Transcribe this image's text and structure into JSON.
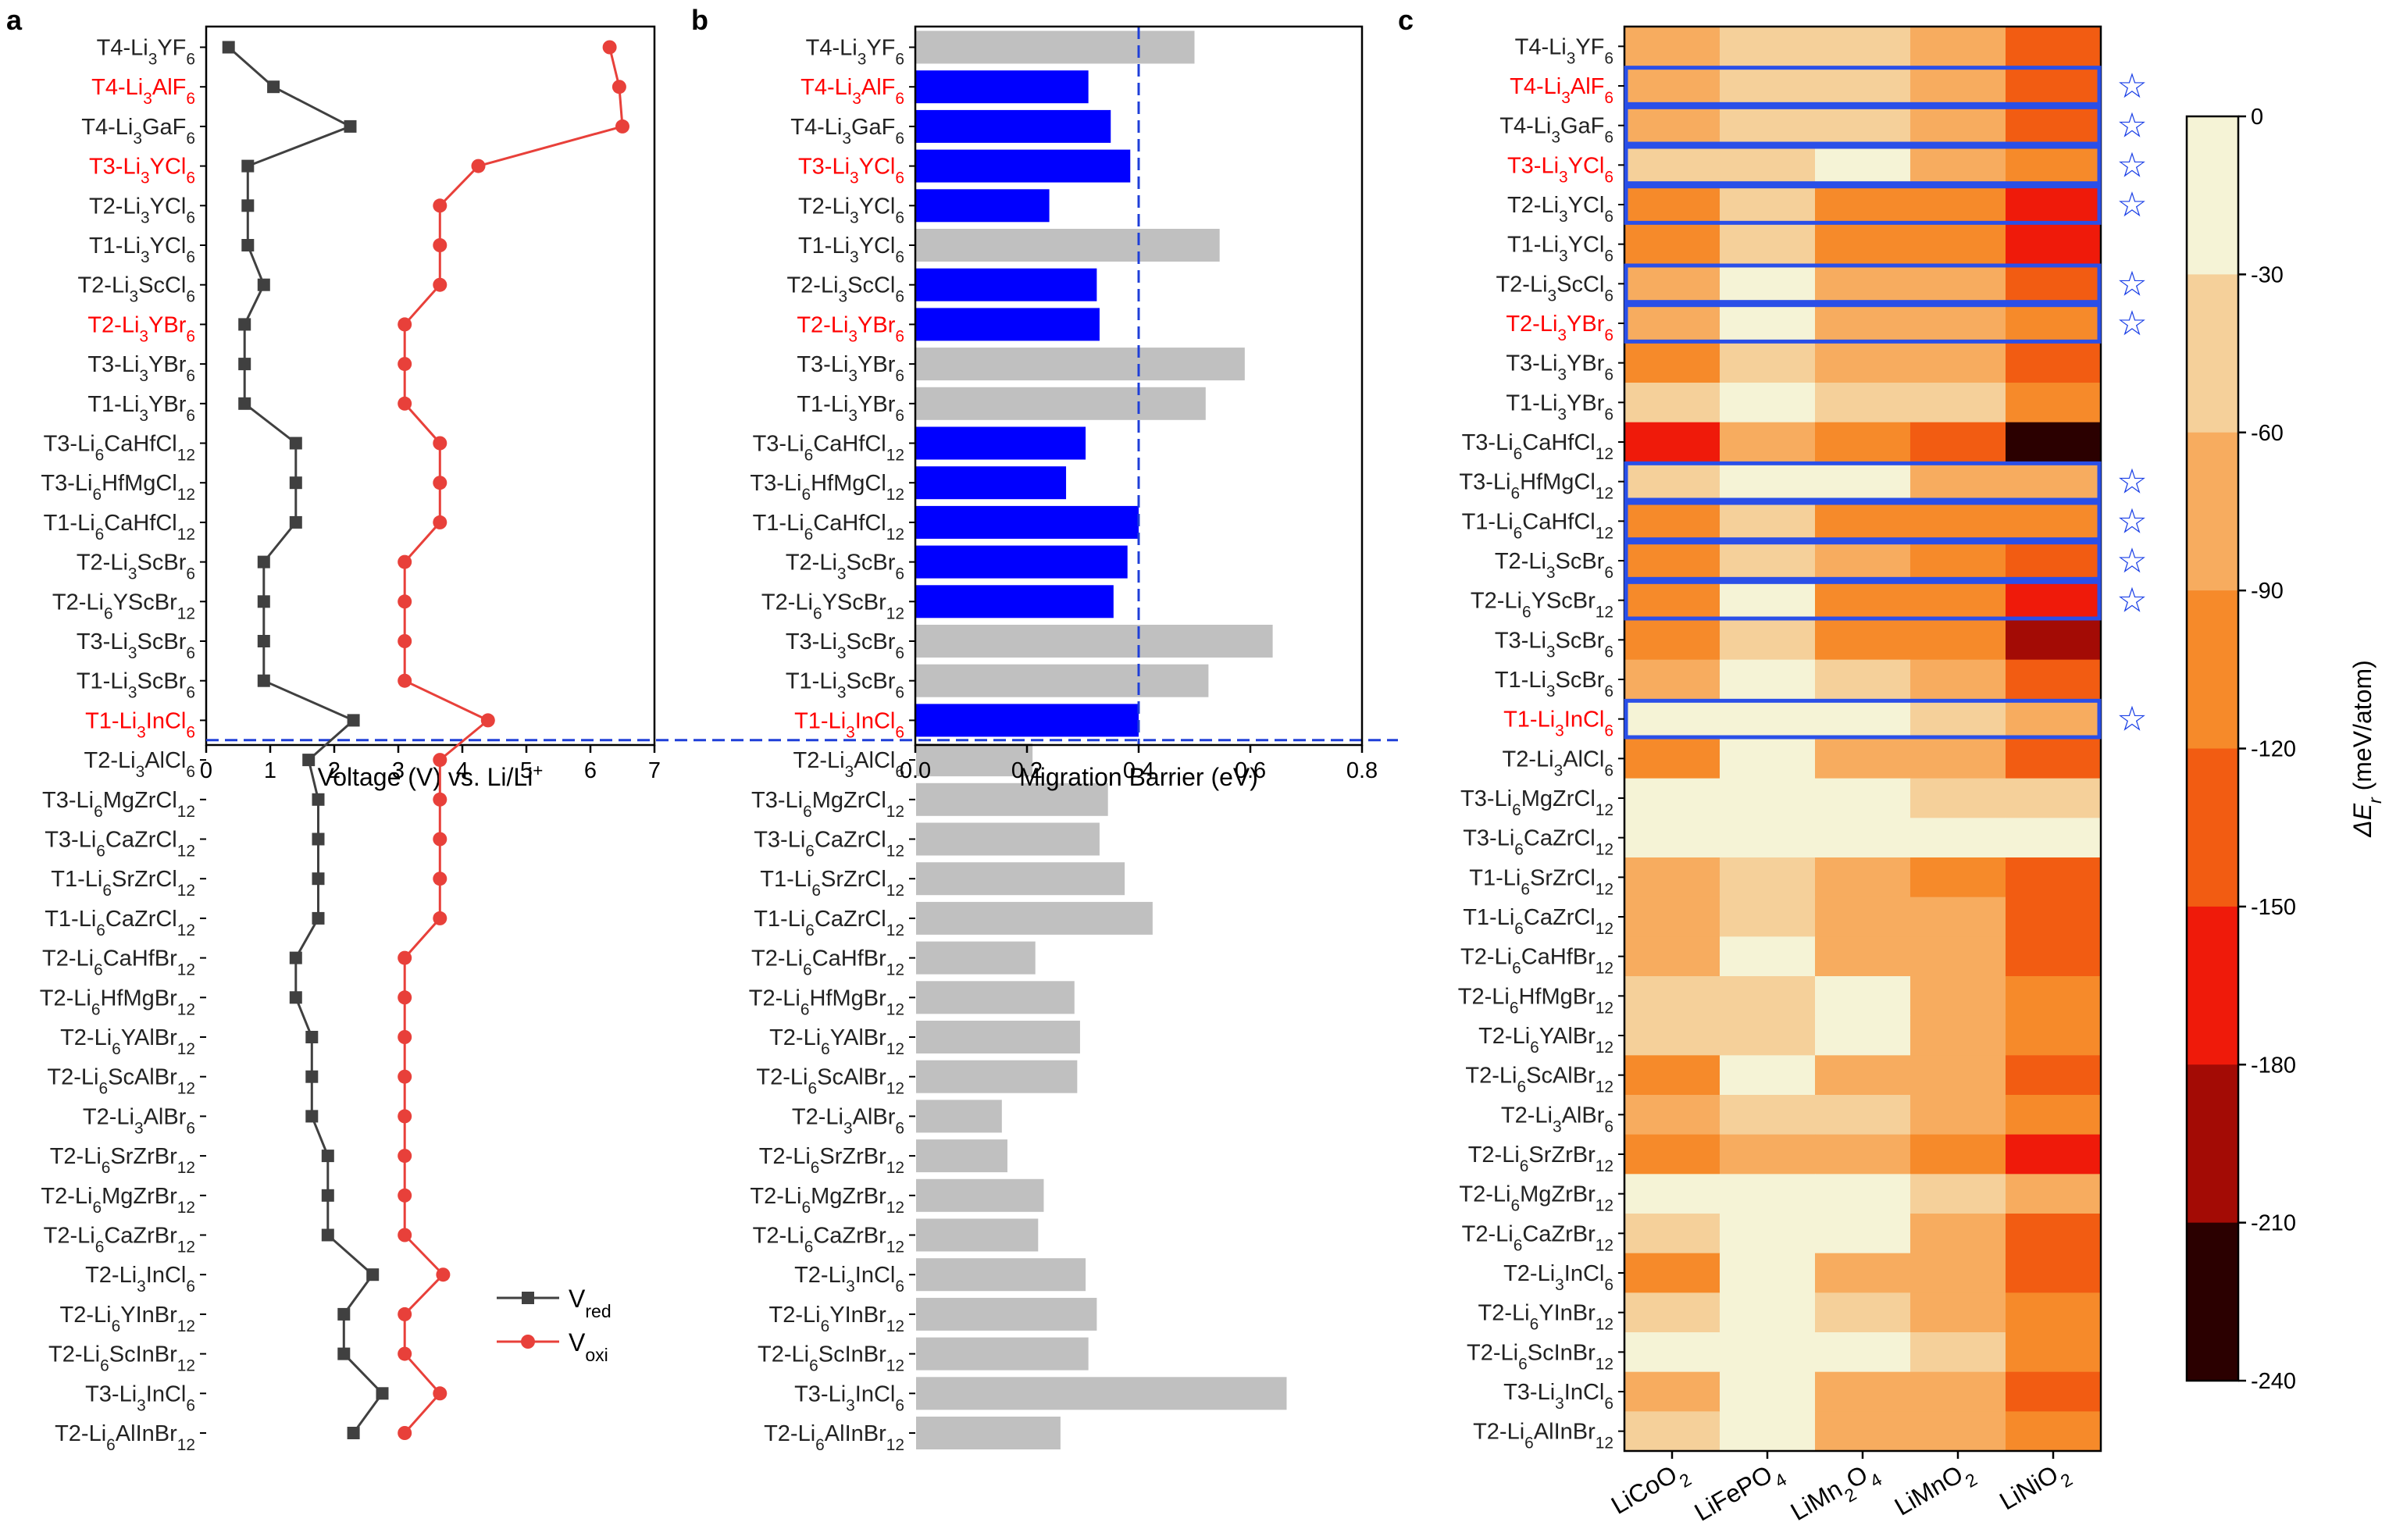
{
  "panels": {
    "a": "a",
    "b": "b",
    "c": "c"
  },
  "colors": {
    "text_black": "#222222",
    "text_red": "#ff0000",
    "red_series": "#e8403a",
    "dark_series": "#404040",
    "blue_bar": "#0000ff",
    "gray_bar": "#c0c0c0",
    "dash": "#1f3fd8",
    "frame_blue": "#2a4fe8",
    "star": "#1a3fe6"
  },
  "chart_data": [
    {
      "type": "line",
      "panel": "a",
      "categories": [
        {
          "label": "T4-Li3YF6",
          "red": false
        },
        {
          "label": "T4-Li3AlF6",
          "red": true
        },
        {
          "label": "T4-Li3GaF6",
          "red": false
        },
        {
          "label": "T3-Li3YCl6",
          "red": true
        },
        {
          "label": "T2-Li3YCl6",
          "red": false
        },
        {
          "label": "T1-Li3YCl6",
          "red": false
        },
        {
          "label": "T2-Li3ScCl6",
          "red": false
        },
        {
          "label": "T2-Li3YBr6",
          "red": true
        },
        {
          "label": "T3-Li3YBr6",
          "red": false
        },
        {
          "label": "T1-Li3YBr6",
          "red": false
        },
        {
          "label": "T3-Li6CaHfCl12",
          "red": false
        },
        {
          "label": "T3-Li6HfMgCl12",
          "red": false
        },
        {
          "label": "T1-Li6CaHfCl12",
          "red": false
        },
        {
          "label": "T2-Li3ScBr6",
          "red": false
        },
        {
          "label": "T2-Li6YScBr12",
          "red": false
        },
        {
          "label": "T3-Li3ScBr6",
          "red": false
        },
        {
          "label": "T1-Li3ScBr6",
          "red": false
        },
        {
          "label": "T1-Li3InCl6",
          "red": true
        },
        {
          "label": "T2-Li3AlCl6",
          "red": false
        },
        {
          "label": "T3-Li6MgZrCl12",
          "red": false
        },
        {
          "label": "T3-Li6CaZrCl12",
          "red": false
        },
        {
          "label": "T1-Li6SrZrCl12",
          "red": false
        },
        {
          "label": "T1-Li6CaZrCl12",
          "red": false
        },
        {
          "label": "T2-Li6CaHfBr12",
          "red": false
        },
        {
          "label": "T2-Li6HfMgBr12",
          "red": false
        },
        {
          "label": "T2-Li6YAlBr12",
          "red": false
        },
        {
          "label": "T2-Li6ScAlBr12",
          "red": false
        },
        {
          "label": "T2-Li3AlBr6",
          "red": false
        },
        {
          "label": "T2-Li6SrZrBr12",
          "red": false
        },
        {
          "label": "T2-Li6MgZrBr12",
          "red": false
        },
        {
          "label": "T2-Li6CaZrBr12",
          "red": false
        },
        {
          "label": "T2-Li3InCl6",
          "red": false
        },
        {
          "label": "T2-Li6YInBr12",
          "red": false
        },
        {
          "label": "T2-Li6ScInBr12",
          "red": false
        },
        {
          "label": "T3-Li3InCl6",
          "red": false
        },
        {
          "label": "T2-Li6AlInBr12",
          "red": false
        }
      ],
      "series": [
        {
          "name": "Vred",
          "marker": "square",
          "values": [
            0.35,
            1.05,
            2.25,
            0.65,
            0.65,
            0.65,
            0.9,
            0.6,
            0.6,
            0.6,
            1.4,
            1.4,
            1.4,
            0.9,
            0.9,
            0.9,
            0.9,
            2.3,
            1.6,
            1.75,
            1.75,
            1.75,
            1.75,
            1.4,
            1.4,
            1.65,
            1.65,
            1.65,
            1.9,
            1.9,
            1.9,
            2.6,
            2.15,
            2.15,
            2.75,
            2.3
          ]
        },
        {
          "name": "Voxi",
          "marker": "circle",
          "values": [
            6.3,
            6.45,
            6.5,
            4.25,
            3.65,
            3.65,
            3.65,
            3.1,
            3.1,
            3.1,
            3.65,
            3.65,
            3.65,
            3.1,
            3.1,
            3.1,
            3.1,
            4.4,
            3.65,
            3.65,
            3.65,
            3.65,
            3.65,
            3.1,
            3.1,
            3.1,
            3.1,
            3.1,
            3.1,
            3.1,
            3.1,
            3.7,
            3.1,
            3.1,
            3.65,
            3.1
          ]
        }
      ],
      "legend": [
        {
          "main": "V",
          "sub": "red"
        },
        {
          "main": "V",
          "sub": "oxi"
        }
      ],
      "xlim": [
        0,
        7
      ],
      "xticks": [
        "0",
        "1",
        "2",
        "3",
        "4",
        "5",
        "6",
        "7"
      ],
      "xlabel": "Voltage (V) vs. Li/Li",
      "xlabel_sup": "+",
      "divider_after_index": 17,
      "legend_position": "lower-right"
    },
    {
      "type": "bar",
      "panel": "b",
      "orientation": "horizontal",
      "values": [
        0.5,
        0.31,
        0.35,
        0.385,
        0.24,
        0.545,
        0.325,
        0.33,
        0.59,
        0.52,
        0.305,
        0.27,
        0.4,
        0.38,
        0.355,
        0.64,
        0.525,
        0.4,
        0.21,
        0.345,
        0.33,
        0.375,
        0.425,
        0.215,
        0.285,
        0.295,
        0.29,
        0.155,
        0.165,
        0.23,
        0.22,
        0.305,
        0.325,
        0.31,
        0.665,
        0.26
      ],
      "highlighted": [
        false,
        true,
        true,
        true,
        true,
        false,
        true,
        true,
        false,
        false,
        true,
        true,
        true,
        true,
        true,
        false,
        false,
        true,
        false,
        false,
        false,
        false,
        false,
        false,
        false,
        false,
        false,
        false,
        false,
        false,
        false,
        false,
        false,
        false,
        false,
        false
      ],
      "threshold": 0.4,
      "xlim": [
        0,
        0.8
      ],
      "xticks": [
        "0.0",
        "0.2",
        "0.4",
        "0.6",
        "0.8"
      ],
      "xlabel": "Migration Barrier (eV)"
    },
    {
      "type": "heatmap",
      "panel": "c",
      "columns": [
        {
          "main": "LiCoO",
          "parts": [
            "LiCoO",
            "2"
          ]
        },
        {
          "main": "LiFePO",
          "parts": [
            "LiFePO",
            "4"
          ]
        },
        {
          "main": "LiMn2O4",
          "parts": [
            "LiMn",
            "2",
            "O",
            "4"
          ]
        },
        {
          "main": "LiMnO",
          "parts": [
            "LiMnO",
            "2"
          ]
        },
        {
          "main": "LiNiO",
          "parts": [
            "LiNiO",
            "2"
          ]
        }
      ],
      "values": [
        [
          -70,
          -40,
          -40,
          -75,
          -130
        ],
        [
          -80,
          -50,
          -55,
          -75,
          -130
        ],
        [
          -80,
          -50,
          -55,
          -75,
          -130
        ],
        [
          -50,
          -40,
          -20,
          -80,
          -120
        ],
        [
          -100,
          -55,
          -95,
          -95,
          -180
        ],
        [
          -100,
          -50,
          -95,
          -95,
          -180
        ],
        [
          -80,
          -20,
          -90,
          -80,
          -125
        ],
        [
          -75,
          -20,
          -90,
          -80,
          -120
        ],
        [
          -100,
          -50,
          -85,
          -85,
          -150
        ],
        [
          -50,
          -20,
          -45,
          -55,
          -100
        ],
        [
          -160,
          -90,
          -120,
          -150,
          -240
        ],
        [
          -45,
          -20,
          -20,
          -65,
          -90
        ],
        [
          -95,
          -50,
          -100,
          -100,
          -120
        ],
        [
          -100,
          -50,
          -90,
          -100,
          -150
        ],
        [
          -100,
          -20,
          -100,
          -100,
          -180
        ],
        [
          -120,
          -50,
          -100,
          -100,
          -210
        ],
        [
          -75,
          -20,
          -55,
          -70,
          -130
        ],
        [
          -20,
          -20,
          -20,
          -45,
          -75
        ],
        [
          -100,
          -20,
          -75,
          -90,
          -150
        ],
        [
          -20,
          -20,
          -20,
          -45,
          -50
        ],
        [
          -20,
          -20,
          -20,
          -20,
          -20
        ],
        [
          -75,
          -55,
          -75,
          -105,
          -130
        ],
        [
          -75,
          -55,
          -75,
          -75,
          -130
        ],
        [
          -75,
          -20,
          -75,
          -75,
          -150
        ],
        [
          -50,
          -50,
          -20,
          -75,
          -100
        ],
        [
          -50,
          -50,
          -20,
          -75,
          -100
        ],
        [
          -100,
          -20,
          -75,
          -75,
          -150
        ],
        [
          -75,
          -50,
          -50,
          -90,
          -120
        ],
        [
          -100,
          -75,
          -75,
          -120,
          -180
        ],
        [
          -20,
          -20,
          -20,
          -50,
          -75
        ],
        [
          -50,
          -20,
          -20,
          -75,
          -130
        ],
        [
          -100,
          -20,
          -75,
          -75,
          -150
        ],
        [
          -50,
          -20,
          -50,
          -75,
          -100
        ],
        [
          -20,
          -20,
          -20,
          -45,
          -100
        ],
        [
          -75,
          -20,
          -75,
          -75,
          -130
        ],
        [
          -50,
          -20,
          -75,
          -75,
          -100
        ]
      ],
      "boxed_rows": [
        1,
        2,
        3,
        4,
        6,
        7,
        11,
        12,
        13,
        14,
        17
      ],
      "star_glyph": "☆"
    }
  ],
  "colorbar": {
    "title_symbol": "ΔE",
    "title_sub": "r",
    "title_unit": " (meV/atom)",
    "ticks": [
      "0",
      "-30",
      "-60",
      "-90",
      "-120",
      "-150",
      "-180",
      "-210",
      "-240"
    ],
    "bins": [
      {
        "min": -30,
        "color": "#f5f3d6"
      },
      {
        "min": -60,
        "color": "#f5d09a"
      },
      {
        "min": -90,
        "color": "#f7ac5f"
      },
      {
        "min": -120,
        "color": "#f68a2a"
      },
      {
        "min": -150,
        "color": "#f25c12"
      },
      {
        "min": -180,
        "color": "#ef1a0a"
      },
      {
        "min": -210,
        "color": "#a30b05"
      },
      {
        "min": -240,
        "color": "#2b0000"
      }
    ]
  }
}
